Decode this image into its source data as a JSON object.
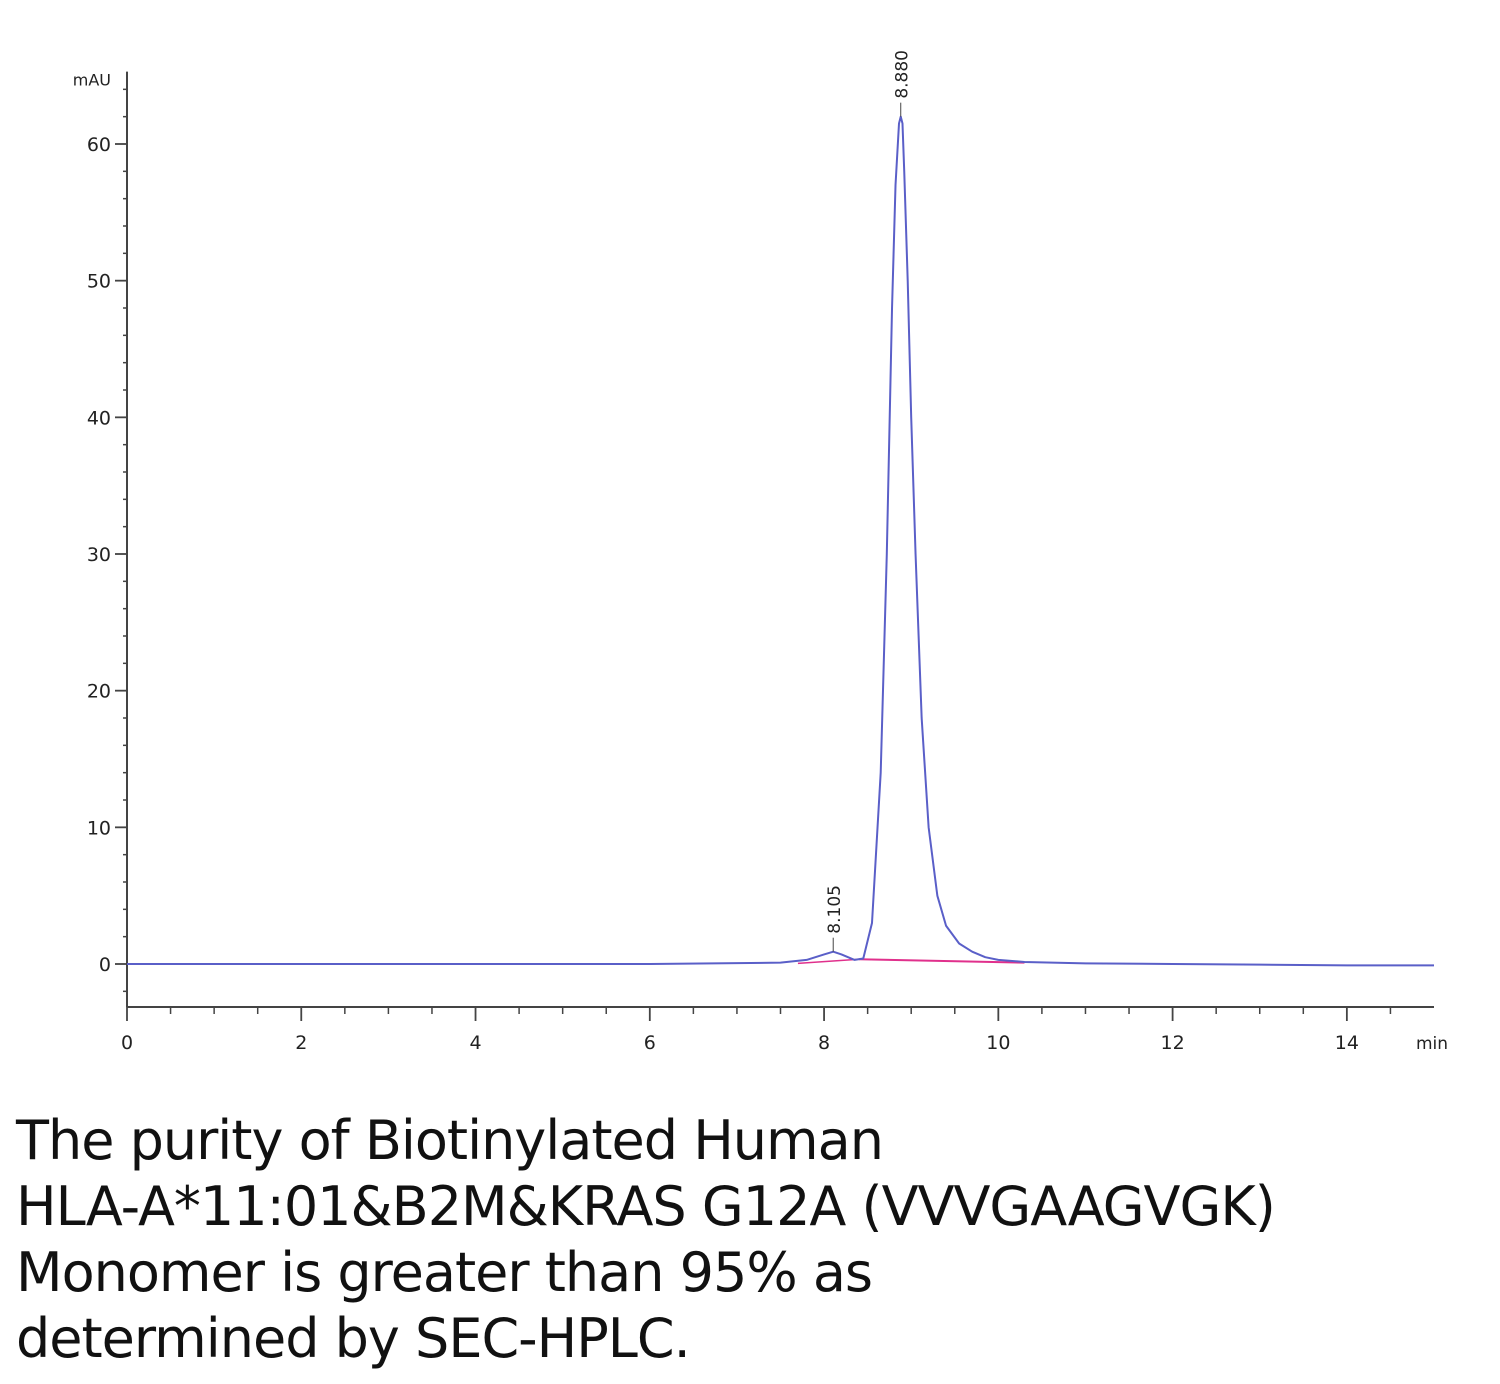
{
  "chart_data": {
    "type": "line",
    "title": "",
    "xlabel": "min",
    "ylabel": "mAU",
    "xlim": [
      0,
      15
    ],
    "ylim": [
      -3,
      65
    ],
    "x_ticks": [
      0,
      2,
      4,
      6,
      8,
      10,
      12,
      14
    ],
    "y_ticks": [
      0,
      10,
      20,
      30,
      40,
      50,
      60
    ],
    "grid": false,
    "colors": {
      "trace": "#5a5fc8",
      "baseline": "#e0308c",
      "axis": "#444444"
    },
    "series": [
      {
        "x": [
          0,
          2,
          4,
          6,
          7.5,
          7.8,
          8.0,
          8.105,
          8.2,
          8.35,
          8.45,
          8.55,
          8.65,
          8.72,
          8.78,
          8.82,
          8.86,
          8.88,
          8.9,
          8.92,
          8.96,
          9.0,
          9.05,
          9.12,
          9.2,
          9.3,
          9.4,
          9.55,
          9.7,
          9.85,
          10.0,
          10.3,
          11,
          12,
          13,
          14,
          15
        ],
        "values": [
          0,
          0,
          0,
          0,
          0.1,
          0.3,
          0.7,
          0.9,
          0.7,
          0.3,
          0.4,
          3,
          14,
          30,
          48,
          57,
          61.5,
          62,
          61.5,
          58,
          50,
          40,
          30,
          18,
          10,
          5,
          2.8,
          1.5,
          0.9,
          0.5,
          0.3,
          0.15,
          0.05,
          0,
          -0.05,
          -0.1,
          -0.1
        ]
      }
    ],
    "annotations": [
      {
        "x": 8.105,
        "y": 0.9,
        "text": "8.105"
      },
      {
        "x": 8.88,
        "y": 62,
        "text": "8.880"
      }
    ]
  },
  "caption": {
    "lines": [
      "The purity of Biotinylated Human",
      "HLA-A*11:01&B2M&KRAS G12A (VVVGAAGVGK)",
      "Monomer is greater than 95% as",
      "determined by SEC-HPLC."
    ]
  }
}
